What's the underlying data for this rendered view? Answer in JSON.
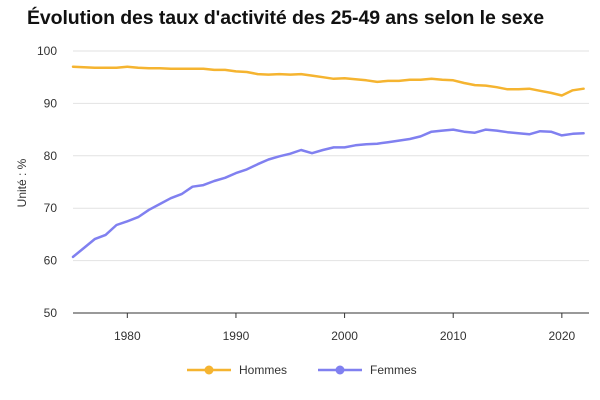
{
  "chart_data": {
    "type": "line",
    "title": "Évolution des taux d'activité des 25-49 ans selon le sexe",
    "ylabel": "Unité : %",
    "xlabel": "",
    "xlim": [
      1975,
      2022.5
    ],
    "ylim": [
      50,
      100
    ],
    "x_ticks": [
      1980,
      1990,
      2000,
      2010,
      2020
    ],
    "y_ticks": [
      50,
      60,
      70,
      80,
      90,
      100
    ],
    "grid": true,
    "legend_position": "bottom",
    "x": [
      1975,
      1976,
      1977,
      1978,
      1979,
      1980,
      1981,
      1982,
      1983,
      1984,
      1985,
      1986,
      1987,
      1988,
      1989,
      1990,
      1991,
      1992,
      1993,
      1994,
      1995,
      1996,
      1997,
      1998,
      1999,
      2000,
      2001,
      2002,
      2003,
      2004,
      2005,
      2006,
      2007,
      2008,
      2009,
      2010,
      2011,
      2012,
      2013,
      2014,
      2015,
      2016,
      2017,
      2018,
      2019,
      2020,
      2021,
      2022
    ],
    "series": [
      {
        "name": "Hommes",
        "color": "#f5b430",
        "values": [
          97.0,
          96.9,
          96.8,
          96.8,
          96.8,
          97.0,
          96.8,
          96.7,
          96.7,
          96.6,
          96.6,
          96.6,
          96.6,
          96.4,
          96.4,
          96.1,
          96.0,
          95.6,
          95.5,
          95.6,
          95.5,
          95.6,
          95.3,
          95.0,
          94.7,
          94.8,
          94.6,
          94.4,
          94.1,
          94.3,
          94.3,
          94.5,
          94.5,
          94.7,
          94.5,
          94.4,
          93.9,
          93.5,
          93.4,
          93.1,
          92.7,
          92.7,
          92.8,
          92.4,
          92.0,
          91.5,
          92.5,
          92.8
        ]
      },
      {
        "name": "Femmes",
        "color": "#8080f0",
        "values": [
          60.7,
          62.4,
          64.1,
          64.9,
          66.8,
          67.5,
          68.3,
          69.7,
          70.8,
          71.9,
          72.7,
          74.1,
          74.4,
          75.2,
          75.8,
          76.7,
          77.4,
          78.4,
          79.3,
          79.9,
          80.4,
          81.1,
          80.5,
          81.1,
          81.6,
          81.6,
          82.0,
          82.2,
          82.3,
          82.6,
          82.9,
          83.2,
          83.7,
          84.6,
          84.8,
          85.0,
          84.6,
          84.4,
          85.0,
          84.8,
          84.5,
          84.3,
          84.1,
          84.7,
          84.6,
          83.9,
          84.2,
          84.3
        ]
      }
    ]
  }
}
